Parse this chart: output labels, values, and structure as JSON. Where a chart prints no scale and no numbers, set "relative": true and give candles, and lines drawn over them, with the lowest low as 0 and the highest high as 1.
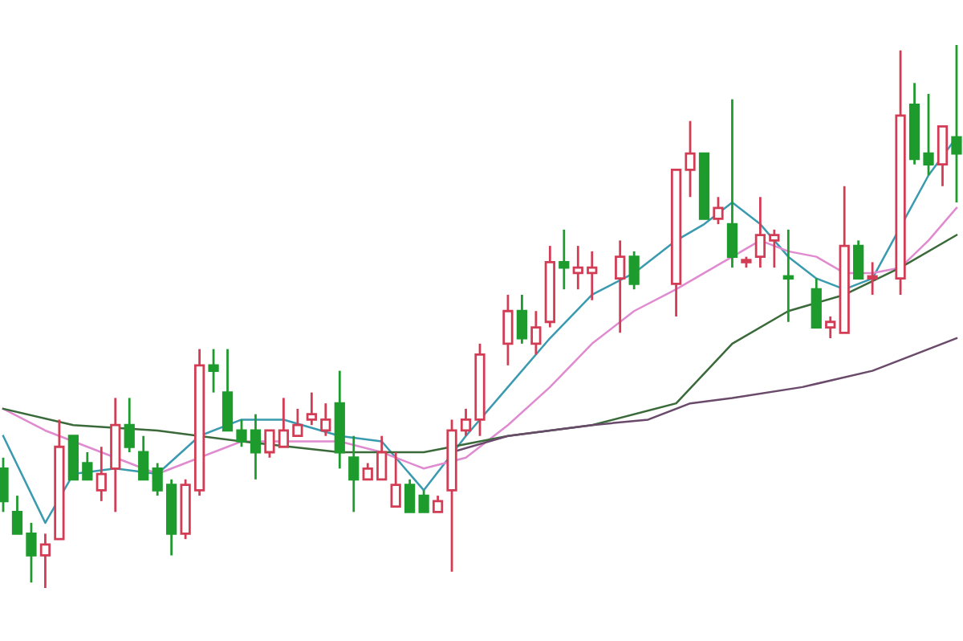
{
  "chart_data": {
    "type": "candlestick",
    "relative": true,
    "categories": [
      null,
      null,
      null,
      null,
      null,
      null,
      null,
      null,
      null,
      null,
      null,
      null,
      null,
      null,
      null,
      null,
      null,
      null,
      null,
      null,
      null,
      null,
      null,
      null,
      null,
      null,
      null,
      null,
      null,
      null,
      null,
      null,
      null,
      null,
      null,
      null,
      null,
      null,
      null,
      null,
      null,
      null,
      null,
      null,
      null,
      null,
      null,
      null,
      null,
      null,
      null,
      null,
      null,
      null,
      null,
      null,
      null,
      null,
      null,
      null,
      null,
      null,
      null,
      null,
      null,
      null,
      null,
      null,
      null
    ],
    "ohlc": [
      [
        0.22,
        0.24,
        0.14,
        0.16
      ],
      [
        0.14,
        0.17,
        0.1,
        0.1
      ],
      [
        0.1,
        0.12,
        0.01,
        0.06
      ],
      [
        0.06,
        0.1,
        0.0,
        0.08
      ],
      [
        0.09,
        0.31,
        0.09,
        0.26
      ],
      [
        0.28,
        0.28,
        0.2,
        0.2
      ],
      [
        0.23,
        0.25,
        0.2,
        0.2
      ],
      [
        0.18,
        0.26,
        0.16,
        0.21
      ],
      [
        0.22,
        0.35,
        0.14,
        0.3
      ],
      [
        0.3,
        0.35,
        0.25,
        0.26
      ],
      [
        0.25,
        0.28,
        0.2,
        0.2
      ],
      [
        0.22,
        0.23,
        0.17,
        0.18
      ],
      [
        0.19,
        0.2,
        0.06,
        0.1
      ],
      [
        0.1,
        0.2,
        0.09,
        0.19
      ],
      [
        0.18,
        0.44,
        0.17,
        0.41
      ],
      [
        0.41,
        0.44,
        0.36,
        0.4
      ],
      [
        0.36,
        0.44,
        0.29,
        0.29
      ],
      [
        0.29,
        0.31,
        0.26,
        0.27
      ],
      [
        0.29,
        0.32,
        0.2,
        0.25
      ],
      [
        0.25,
        0.29,
        0.24,
        0.29
      ],
      [
        0.26,
        0.35,
        0.26,
        0.29
      ],
      [
        0.28,
        0.33,
        0.28,
        0.3
      ],
      [
        0.31,
        0.36,
        0.3,
        0.32
      ],
      [
        0.29,
        0.34,
        0.28,
        0.31
      ],
      [
        0.34,
        0.4,
        0.22,
        0.25
      ],
      [
        0.24,
        0.28,
        0.14,
        0.2
      ],
      [
        0.2,
        0.23,
        0.2,
        0.22
      ],
      [
        0.2,
        0.28,
        0.2,
        0.25
      ],
      [
        0.15,
        0.25,
        0.15,
        0.19
      ],
      [
        0.19,
        0.2,
        0.14,
        0.14
      ],
      [
        0.17,
        0.18,
        0.14,
        0.14
      ],
      [
        0.14,
        0.17,
        0.14,
        0.16
      ],
      [
        0.18,
        0.31,
        0.03,
        0.29
      ],
      [
        0.29,
        0.33,
        0.28,
        0.31
      ],
      [
        0.31,
        0.45,
        0.28,
        0.43
      ],
      null,
      [
        0.45,
        0.54,
        0.41,
        0.51
      ],
      [
        0.51,
        0.54,
        0.45,
        0.46
      ],
      [
        0.45,
        0.51,
        0.43,
        0.48
      ],
      [
        0.49,
        0.63,
        0.48,
        0.6
      ],
      [
        0.6,
        0.66,
        0.55,
        0.59
      ],
      [
        0.58,
        0.63,
        0.55,
        0.59
      ],
      [
        0.58,
        0.62,
        0.53,
        0.59
      ],
      null,
      [
        0.57,
        0.64,
        0.47,
        0.61
      ],
      [
        0.61,
        0.62,
        0.55,
        0.56
      ],
      null,
      null,
      [
        0.56,
        0.77,
        0.5,
        0.77
      ],
      [
        0.77,
        0.86,
        0.72,
        0.8
      ],
      [
        0.8,
        0.8,
        0.68,
        0.68
      ],
      [
        0.68,
        0.72,
        0.67,
        0.7
      ],
      [
        0.67,
        0.9,
        0.59,
        0.61
      ],
      [
        0.6,
        0.61,
        0.59,
        0.6
      ],
      [
        0.61,
        0.72,
        0.59,
        0.65
      ],
      [
        0.64,
        0.66,
        0.59,
        0.65
      ],
      [
        0.57,
        0.66,
        0.49,
        0.57
      ],
      null,
      [
        0.55,
        0.57,
        0.48,
        0.48
      ],
      [
        0.48,
        0.5,
        0.46,
        0.49
      ],
      [
        0.47,
        0.74,
        0.47,
        0.63
      ],
      [
        0.63,
        0.64,
        0.57,
        0.57
      ],
      [
        0.57,
        0.6,
        0.54,
        0.57
      ],
      null,
      [
        0.57,
        0.99,
        0.54,
        0.87
      ],
      [
        0.89,
        0.93,
        0.78,
        0.79
      ],
      [
        0.8,
        0.91,
        0.76,
        0.78
      ],
      [
        0.78,
        0.85,
        0.74,
        0.85
      ],
      [
        0.83,
        1.0,
        0.71,
        0.8
      ]
    ],
    "colors": [
      "#1e9b2d",
      "#1e9b2d",
      "#1e9b2d",
      "#d23c55",
      "#d23c55",
      "#1e9b2d",
      "#1e9b2d",
      "#d23c55",
      "#d23c55",
      "#1e9b2d",
      "#1e9b2d",
      "#1e9b2d",
      "#1e9b2d",
      "#d23c55",
      "#d23c55",
      "#1e9b2d",
      "#1e9b2d",
      "#1e9b2d",
      "#1e9b2d",
      "#d23c55",
      "#d23c55",
      "#d23c55",
      "#d23c55",
      "#d23c55",
      "#1e9b2d",
      "#1e9b2d",
      "#d23c55",
      "#d23c55",
      "#d23c55",
      "#1e9b2d",
      "#1e9b2d",
      "#d23c55",
      "#d23c55",
      "#d23c55",
      "#d23c55",
      null,
      "#d23c55",
      "#1e9b2d",
      "#d23c55",
      "#d23c55",
      "#1e9b2d",
      "#d23c55",
      "#d23c55",
      null,
      "#d23c55",
      "#1e9b2d",
      null,
      null,
      "#d23c55",
      "#d23c55",
      "#1e9b2d",
      "#d23c55",
      "#1e9b2d",
      "#d23c55",
      "#d23c55",
      "#d23c55",
      "#1e9b2d",
      null,
      "#1e9b2d",
      "#d23c55",
      "#d23c55",
      "#1e9b2d",
      "#d23c55",
      null,
      "#d23c55",
      "#1e9b2d",
      "#1e9b2d",
      "#d23c55",
      "#1e9b2d"
    ],
    "series": [
      {
        "type": "line",
        "color": "#3a9ab0",
        "values": [
          0.28,
          null,
          null,
          0.12,
          null,
          0.21,
          null,
          null,
          0.22,
          null,
          null,
          0.21,
          null,
          null,
          0.28,
          null,
          null,
          0.31,
          null,
          null,
          0.31,
          null,
          null,
          null,
          0.28,
          null,
          null,
          0.27,
          null,
          null,
          0.18,
          null,
          null,
          0.28,
          null,
          null,
          0.37,
          null,
          null,
          0.46,
          null,
          null,
          0.54,
          null,
          null,
          0.58,
          null,
          null,
          0.64,
          null,
          0.67,
          null,
          0.71,
          null,
          0.67,
          null,
          0.61,
          null,
          0.57,
          null,
          0.55,
          null,
          0.57,
          null,
          null,
          null,
          0.76,
          null,
          0.83
        ]
      },
      {
        "type": "line",
        "color": "#e08ad0",
        "values": [
          0.33,
          null,
          null,
          0.29,
          null,
          0.27,
          null,
          null,
          0.24,
          null,
          null,
          0.21,
          null,
          null,
          0.24,
          null,
          null,
          0.27,
          null,
          null,
          0.27,
          null,
          null,
          null,
          0.27,
          null,
          null,
          0.25,
          null,
          null,
          0.22,
          null,
          null,
          0.24,
          null,
          null,
          0.3,
          null,
          null,
          0.37,
          null,
          null,
          0.45,
          null,
          null,
          0.51,
          null,
          null,
          0.55,
          null,
          0.58,
          null,
          0.61,
          null,
          0.64,
          null,
          0.62,
          null,
          0.61,
          null,
          0.58,
          null,
          0.58,
          null,
          0.59,
          null,
          0.64,
          null,
          0.7
        ]
      },
      {
        "type": "line",
        "color": "#3a6a3a",
        "values": [
          0.33,
          null,
          null,
          null,
          null,
          0.3,
          null,
          null,
          null,
          null,
          null,
          0.29,
          null,
          null,
          null,
          null,
          null,
          0.27,
          null,
          null,
          null,
          null,
          null,
          null,
          0.25,
          null,
          null,
          null,
          null,
          null,
          0.25,
          null,
          null,
          null,
          null,
          null,
          0.28,
          null,
          null,
          null,
          null,
          null,
          0.3,
          null,
          null,
          null,
          null,
          null,
          0.34,
          null,
          null,
          null,
          0.45,
          null,
          null,
          null,
          0.51,
          null,
          null,
          null,
          0.54,
          null,
          null,
          null,
          0.59,
          null,
          null,
          null,
          0.65
        ]
      },
      {
        "type": "line",
        "color": "#6a4a6a",
        "values": [
          null,
          null,
          null,
          null,
          null,
          null,
          null,
          null,
          null,
          null,
          null,
          null,
          null,
          null,
          null,
          null,
          null,
          null,
          null,
          null,
          null,
          null,
          null,
          null,
          null,
          null,
          null,
          null,
          null,
          null,
          null,
          null,
          0.25,
          null,
          null,
          null,
          0.28,
          null,
          null,
          null,
          null,
          null,
          0.3,
          null,
          null,
          null,
          0.31,
          null,
          null,
          0.34,
          null,
          null,
          0.35,
          null,
          null,
          null,
          null,
          0.37,
          null,
          null,
          null,
          null,
          0.4,
          null,
          null,
          0.43,
          null,
          null,
          0.46
        ]
      }
    ]
  }
}
